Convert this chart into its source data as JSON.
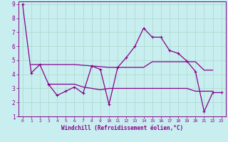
{
  "xlabel": "Windchill (Refroidissement éolien,°C)",
  "bg_color": "#c8eef0",
  "grid_color": "#aad8cc",
  "line_color": "#880088",
  "xlim": [
    -0.5,
    23.5
  ],
  "ylim": [
    1,
    9.2
  ],
  "yticks": [
    1,
    2,
    3,
    4,
    5,
    6,
    7,
    8,
    9
  ],
  "xticks": [
    0,
    1,
    2,
    3,
    4,
    5,
    6,
    7,
    8,
    9,
    10,
    11,
    12,
    13,
    14,
    15,
    16,
    17,
    18,
    19,
    20,
    21,
    22,
    23
  ],
  "series1_x": [
    0,
    1,
    2,
    3,
    4,
    5,
    6,
    7,
    8,
    9,
    10,
    11,
    12,
    13,
    14,
    15,
    16,
    17,
    18,
    19,
    20,
    21,
    22,
    23
  ],
  "series1_y": [
    9.0,
    4.1,
    4.7,
    3.3,
    2.5,
    2.8,
    3.1,
    2.65,
    4.6,
    4.35,
    1.85,
    4.5,
    5.2,
    6.0,
    7.3,
    6.65,
    6.65,
    5.7,
    5.5,
    4.95,
    4.2,
    1.35,
    2.7,
    2.7
  ],
  "series2_x": [
    1,
    2,
    3,
    4,
    5,
    6,
    7,
    8,
    9,
    10,
    11,
    12,
    13,
    14,
    15,
    16,
    17,
    18,
    19,
    20,
    21,
    22
  ],
  "series2_y": [
    4.7,
    4.7,
    4.7,
    4.7,
    4.7,
    4.7,
    4.65,
    4.6,
    4.55,
    4.5,
    4.5,
    4.5,
    4.5,
    4.5,
    4.9,
    4.9,
    4.9,
    4.9,
    4.9,
    4.9,
    4.3,
    4.3
  ],
  "series3_x": [
    3,
    4,
    5,
    6,
    7,
    8,
    9,
    10,
    11,
    12,
    13,
    14,
    15,
    16,
    17,
    18,
    19,
    20,
    21,
    22
  ],
  "series3_y": [
    3.3,
    3.3,
    3.3,
    3.3,
    3.1,
    3.0,
    2.9,
    3.0,
    3.0,
    3.0,
    3.0,
    3.0,
    3.0,
    3.0,
    3.0,
    3.0,
    3.0,
    2.8,
    2.8,
    2.8
  ]
}
